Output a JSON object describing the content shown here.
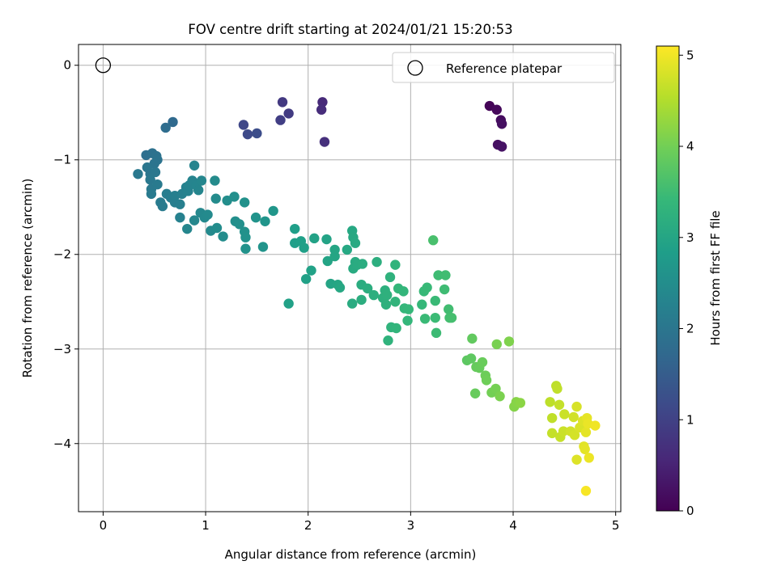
{
  "chart_data": {
    "type": "scatter",
    "title": "FOV centre drift starting at 2024/01/21 15:20:53",
    "xlabel": "Angular distance from reference (arcmin)",
    "ylabel": "Rotation from reference (arcmin)",
    "xlim": [
      -0.24,
      5.05
    ],
    "ylim": [
      -4.72,
      0.22
    ],
    "xticks": [
      "0",
      "1",
      "2",
      "3",
      "4",
      "5"
    ],
    "xtick_values": [
      0,
      1,
      2,
      3,
      4,
      5
    ],
    "yticks": [
      "0",
      "−1",
      "−2",
      "−3",
      "−4"
    ],
    "ytick_values": [
      0,
      -1,
      -2,
      -3,
      -4
    ],
    "grid": true,
    "legend": {
      "placement": "top-right",
      "entries": [
        "Reference platepar"
      ]
    },
    "reference_point": {
      "name": "Reference platepar",
      "x": 0,
      "y": 0
    },
    "colorbar": {
      "label": "Hours from first FF file",
      "range": [
        0,
        5.1
      ],
      "ticks": [
        "0",
        "1",
        "2",
        "3",
        "4",
        "5"
      ],
      "tick_values": [
        0,
        1,
        2,
        3,
        4,
        5
      ],
      "colormap": "viridis"
    },
    "points": [
      {
        "x": 3.77,
        "y": -0.43,
        "c": 0.05
      },
      {
        "x": 3.84,
        "y": -0.47,
        "c": 0.1
      },
      {
        "x": 3.88,
        "y": -0.58,
        "c": 0.15
      },
      {
        "x": 3.89,
        "y": -0.62,
        "c": 0.2
      },
      {
        "x": 3.85,
        "y": -0.84,
        "c": 0.22
      },
      {
        "x": 3.89,
        "y": -0.86,
        "c": 0.25
      },
      {
        "x": 2.14,
        "y": -0.39,
        "c": 0.6
      },
      {
        "x": 2.13,
        "y": -0.47,
        "c": 0.65
      },
      {
        "x": 2.16,
        "y": -0.81,
        "c": 0.7
      },
      {
        "x": 1.75,
        "y": -0.39,
        "c": 0.85
      },
      {
        "x": 1.81,
        "y": -0.51,
        "c": 0.9
      },
      {
        "x": 1.73,
        "y": -0.58,
        "c": 0.95
      },
      {
        "x": 1.37,
        "y": -0.63,
        "c": 1.1
      },
      {
        "x": 1.41,
        "y": -0.73,
        "c": 1.15
      },
      {
        "x": 1.5,
        "y": -0.72,
        "c": 1.2
      },
      {
        "x": 0.68,
        "y": -0.6,
        "c": 1.75
      },
      {
        "x": 0.61,
        "y": -0.66,
        "c": 1.8
      },
      {
        "x": 0.42,
        "y": -0.95,
        "c": 1.85
      },
      {
        "x": 0.48,
        "y": -0.93,
        "c": 1.9
      },
      {
        "x": 0.52,
        "y": -0.96,
        "c": 1.92
      },
      {
        "x": 0.53,
        "y": -1.0,
        "c": 1.95
      },
      {
        "x": 0.5,
        "y": -1.04,
        "c": 1.97
      },
      {
        "x": 0.43,
        "y": -1.08,
        "c": 2.0
      },
      {
        "x": 0.46,
        "y": -1.15,
        "c": 2.0
      },
      {
        "x": 0.51,
        "y": -1.13,
        "c": 2.02
      },
      {
        "x": 0.34,
        "y": -1.15,
        "c": 2.05
      },
      {
        "x": 0.46,
        "y": -1.21,
        "c": 2.05
      },
      {
        "x": 0.47,
        "y": -1.31,
        "c": 2.08
      },
      {
        "x": 0.47,
        "y": -1.36,
        "c": 2.1
      },
      {
        "x": 0.53,
        "y": -1.26,
        "c": 2.1
      },
      {
        "x": 0.56,
        "y": -1.45,
        "c": 2.12
      },
      {
        "x": 0.58,
        "y": -1.49,
        "c": 2.12
      },
      {
        "x": 0.62,
        "y": -1.36,
        "c": 2.15
      },
      {
        "x": 0.66,
        "y": -1.4,
        "c": 2.15
      },
      {
        "x": 0.7,
        "y": -1.45,
        "c": 2.18
      },
      {
        "x": 0.7,
        "y": -1.38,
        "c": 2.2
      },
      {
        "x": 0.75,
        "y": -1.47,
        "c": 2.2
      },
      {
        "x": 0.77,
        "y": -1.36,
        "c": 2.22
      },
      {
        "x": 0.75,
        "y": -1.61,
        "c": 2.25
      },
      {
        "x": 0.81,
        "y": -1.29,
        "c": 2.25
      },
      {
        "x": 0.83,
        "y": -1.33,
        "c": 2.27
      },
      {
        "x": 0.84,
        "y": -1.27,
        "c": 2.28
      },
      {
        "x": 0.87,
        "y": -1.22,
        "c": 2.3
      },
      {
        "x": 0.89,
        "y": -1.06,
        "c": 2.3
      },
      {
        "x": 0.91,
        "y": -1.27,
        "c": 2.32
      },
      {
        "x": 0.93,
        "y": -1.32,
        "c": 2.33
      },
      {
        "x": 0.96,
        "y": -1.22,
        "c": 2.35
      },
      {
        "x": 0.82,
        "y": -1.73,
        "c": 2.35
      },
      {
        "x": 0.89,
        "y": -1.64,
        "c": 2.37
      },
      {
        "x": 0.95,
        "y": -1.56,
        "c": 2.38
      },
      {
        "x": 0.99,
        "y": -1.61,
        "c": 2.4
      },
      {
        "x": 1.02,
        "y": -1.58,
        "c": 2.42
      },
      {
        "x": 1.05,
        "y": -1.75,
        "c": 2.43
      },
      {
        "x": 1.09,
        "y": -1.22,
        "c": 2.45
      },
      {
        "x": 1.1,
        "y": -1.41,
        "c": 2.45
      },
      {
        "x": 1.11,
        "y": -1.72,
        "c": 2.47
      },
      {
        "x": 1.17,
        "y": -1.81,
        "c": 2.48
      },
      {
        "x": 1.21,
        "y": -1.43,
        "c": 2.5
      },
      {
        "x": 1.28,
        "y": -1.39,
        "c": 2.52
      },
      {
        "x": 1.29,
        "y": -1.65,
        "c": 2.53
      },
      {
        "x": 1.33,
        "y": -1.68,
        "c": 2.55
      },
      {
        "x": 1.38,
        "y": -1.45,
        "c": 2.57
      },
      {
        "x": 1.38,
        "y": -1.76,
        "c": 2.58
      },
      {
        "x": 1.39,
        "y": -1.82,
        "c": 2.6
      },
      {
        "x": 1.39,
        "y": -1.94,
        "c": 2.6
      },
      {
        "x": 1.49,
        "y": -1.61,
        "c": 2.62
      },
      {
        "x": 1.56,
        "y": -1.92,
        "c": 2.63
      },
      {
        "x": 1.58,
        "y": -1.65,
        "c": 2.65
      },
      {
        "x": 1.66,
        "y": -1.54,
        "c": 2.67
      },
      {
        "x": 1.81,
        "y": -2.52,
        "c": 2.9
      },
      {
        "x": 1.87,
        "y": -1.73,
        "c": 2.85
      },
      {
        "x": 1.87,
        "y": -1.88,
        "c": 2.85
      },
      {
        "x": 1.93,
        "y": -1.86,
        "c": 2.87
      },
      {
        "x": 1.96,
        "y": -1.93,
        "c": 2.88
      },
      {
        "x": 1.98,
        "y": -2.26,
        "c": 2.9
      },
      {
        "x": 2.03,
        "y": -2.17,
        "c": 2.92
      },
      {
        "x": 2.06,
        "y": -1.83,
        "c": 2.93
      },
      {
        "x": 2.18,
        "y": -1.84,
        "c": 2.95
      },
      {
        "x": 2.19,
        "y": -2.07,
        "c": 2.97
      },
      {
        "x": 2.22,
        "y": -2.31,
        "c": 2.98
      },
      {
        "x": 2.26,
        "y": -1.95,
        "c": 3.0
      },
      {
        "x": 2.26,
        "y": -2.02,
        "c": 3.0
      },
      {
        "x": 2.29,
        "y": -2.32,
        "c": 3.02
      },
      {
        "x": 2.31,
        "y": -2.35,
        "c": 3.03
      },
      {
        "x": 2.38,
        "y": -1.95,
        "c": 3.05
      },
      {
        "x": 2.43,
        "y": -1.75,
        "c": 3.05
      },
      {
        "x": 2.44,
        "y": -1.82,
        "c": 3.07
      },
      {
        "x": 2.46,
        "y": -1.88,
        "c": 3.08
      },
      {
        "x": 2.44,
        "y": -2.15,
        "c": 3.1
      },
      {
        "x": 2.46,
        "y": -2.08,
        "c": 3.1
      },
      {
        "x": 2.48,
        "y": -2.11,
        "c": 3.12
      },
      {
        "x": 2.43,
        "y": -2.52,
        "c": 3.13
      },
      {
        "x": 2.52,
        "y": -2.32,
        "c": 3.15
      },
      {
        "x": 2.53,
        "y": -2.1,
        "c": 3.15
      },
      {
        "x": 2.52,
        "y": -2.48,
        "c": 3.17
      },
      {
        "x": 2.58,
        "y": -2.36,
        "c": 3.18
      },
      {
        "x": 2.64,
        "y": -2.43,
        "c": 3.2
      },
      {
        "x": 2.67,
        "y": -2.08,
        "c": 3.2
      },
      {
        "x": 2.73,
        "y": -2.46,
        "c": 3.22
      },
      {
        "x": 2.75,
        "y": -2.38,
        "c": 3.23
      },
      {
        "x": 2.77,
        "y": -2.43,
        "c": 3.25
      },
      {
        "x": 2.76,
        "y": -2.53,
        "c": 3.25
      },
      {
        "x": 2.8,
        "y": -2.24,
        "c": 3.27
      },
      {
        "x": 2.78,
        "y": -2.91,
        "c": 3.28
      },
      {
        "x": 2.81,
        "y": -2.77,
        "c": 3.3
      },
      {
        "x": 2.85,
        "y": -2.11,
        "c": 3.3
      },
      {
        "x": 2.85,
        "y": -2.5,
        "c": 3.32
      },
      {
        "x": 2.86,
        "y": -2.78,
        "c": 3.33
      },
      {
        "x": 2.88,
        "y": -2.36,
        "c": 3.35
      },
      {
        "x": 2.93,
        "y": -2.39,
        "c": 3.35
      },
      {
        "x": 2.94,
        "y": -2.57,
        "c": 3.37
      },
      {
        "x": 2.97,
        "y": -2.7,
        "c": 3.38
      },
      {
        "x": 2.98,
        "y": -2.58,
        "c": 3.4
      },
      {
        "x": 3.11,
        "y": -2.53,
        "c": 3.4
      },
      {
        "x": 3.13,
        "y": -2.39,
        "c": 3.42
      },
      {
        "x": 3.16,
        "y": -2.35,
        "c": 3.43
      },
      {
        "x": 3.14,
        "y": -2.68,
        "c": 3.45
      },
      {
        "x": 3.22,
        "y": -1.85,
        "c": 3.6
      },
      {
        "x": 3.24,
        "y": -2.49,
        "c": 3.45
      },
      {
        "x": 3.24,
        "y": -2.67,
        "c": 3.47
      },
      {
        "x": 3.25,
        "y": -2.83,
        "c": 3.48
      },
      {
        "x": 3.27,
        "y": -2.22,
        "c": 3.5
      },
      {
        "x": 3.33,
        "y": -2.37,
        "c": 3.5
      },
      {
        "x": 3.34,
        "y": -2.22,
        "c": 3.52
      },
      {
        "x": 3.37,
        "y": -2.58,
        "c": 3.53
      },
      {
        "x": 3.38,
        "y": -2.67,
        "c": 3.55
      },
      {
        "x": 3.4,
        "y": -2.67,
        "c": 3.57
      },
      {
        "x": 3.55,
        "y": -3.12,
        "c": 3.8
      },
      {
        "x": 3.59,
        "y": -3.1,
        "c": 3.82
      },
      {
        "x": 3.6,
        "y": -2.89,
        "c": 3.85
      },
      {
        "x": 3.63,
        "y": -3.47,
        "c": 3.9
      },
      {
        "x": 3.64,
        "y": -3.19,
        "c": 3.88
      },
      {
        "x": 3.67,
        "y": -3.2,
        "c": 3.9
      },
      {
        "x": 3.7,
        "y": -3.14,
        "c": 3.92
      },
      {
        "x": 3.73,
        "y": -3.28,
        "c": 3.95
      },
      {
        "x": 3.74,
        "y": -3.33,
        "c": 3.97
      },
      {
        "x": 3.79,
        "y": -3.46,
        "c": 4.0
      },
      {
        "x": 3.83,
        "y": -3.42,
        "c": 4.02
      },
      {
        "x": 3.84,
        "y": -2.95,
        "c": 4.05
      },
      {
        "x": 3.87,
        "y": -3.5,
        "c": 4.07
      },
      {
        "x": 3.96,
        "y": -2.92,
        "c": 4.1
      },
      {
        "x": 4.01,
        "y": -3.61,
        "c": 4.15
      },
      {
        "x": 4.03,
        "y": -3.56,
        "c": 4.17
      },
      {
        "x": 4.07,
        "y": -3.57,
        "c": 4.2
      },
      {
        "x": 4.36,
        "y": -3.56,
        "c": 4.6
      },
      {
        "x": 4.38,
        "y": -3.73,
        "c": 4.62
      },
      {
        "x": 4.38,
        "y": -3.89,
        "c": 4.65
      },
      {
        "x": 4.42,
        "y": -3.39,
        "c": 4.6
      },
      {
        "x": 4.43,
        "y": -3.42,
        "c": 4.62
      },
      {
        "x": 4.45,
        "y": -3.59,
        "c": 4.65
      },
      {
        "x": 4.46,
        "y": -3.93,
        "c": 4.67
      },
      {
        "x": 4.49,
        "y": -3.87,
        "c": 4.7
      },
      {
        "x": 4.5,
        "y": -3.69,
        "c": 4.7
      },
      {
        "x": 4.56,
        "y": -3.87,
        "c": 4.75
      },
      {
        "x": 4.59,
        "y": -3.72,
        "c": 4.75
      },
      {
        "x": 4.6,
        "y": -3.91,
        "c": 4.78
      },
      {
        "x": 4.62,
        "y": -3.61,
        "c": 4.8
      },
      {
        "x": 4.62,
        "y": -4.17,
        "c": 4.85
      },
      {
        "x": 4.65,
        "y": -3.83,
        "c": 4.82
      },
      {
        "x": 4.68,
        "y": -3.76,
        "c": 4.85
      },
      {
        "x": 4.69,
        "y": -4.03,
        "c": 4.88
      },
      {
        "x": 4.7,
        "y": -4.06,
        "c": 4.9
      },
      {
        "x": 4.71,
        "y": -3.88,
        "c": 4.9
      },
      {
        "x": 4.72,
        "y": -3.73,
        "c": 4.92
      },
      {
        "x": 4.73,
        "y": -3.79,
        "c": 4.95
      },
      {
        "x": 4.74,
        "y": -4.15,
        "c": 4.97
      },
      {
        "x": 4.8,
        "y": -3.81,
        "c": 5.0
      },
      {
        "x": 4.71,
        "y": -4.5,
        "c": 5.05
      }
    ]
  }
}
